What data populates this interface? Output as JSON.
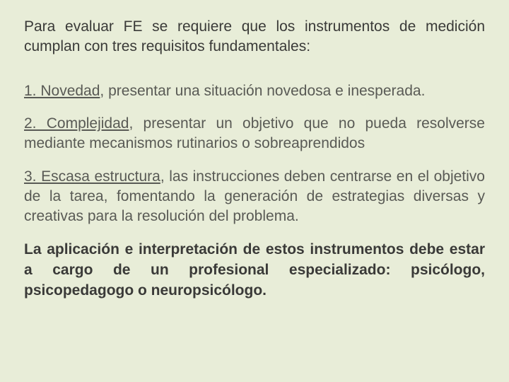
{
  "colors": {
    "background": "#e8edd8",
    "headline_text": "#3a3a38",
    "body_text": "#595a55"
  },
  "typography": {
    "font_family": "Arial",
    "font_size_pt": 16,
    "line_height": 1.35,
    "alignment": "justify"
  },
  "intro": "Para evaluar FE se requiere que los instrumentos de medición cumplan con tres requisitos fundamentales:",
  "items": [
    {
      "label": "1. Novedad",
      "rest": ", presentar una situación novedosa e inesperada."
    },
    {
      "label": "2. Complejidad",
      "rest": ", presentar un objetivo que no pueda resolverse mediante mecanismos rutinarios o sobreaprendidos"
    },
    {
      "label": "3. Escasa estructura",
      "rest": ", las instrucciones deben centrarse en el objetivo de la tarea, fomentando la generación de estrategias diversas y creativas para la resolución del problema."
    }
  ],
  "closing": "La aplicación e interpretación de estos instrumentos debe estar a cargo de un profesional especializado: psicólogo, psicopedagogo o neuropsicólogo."
}
